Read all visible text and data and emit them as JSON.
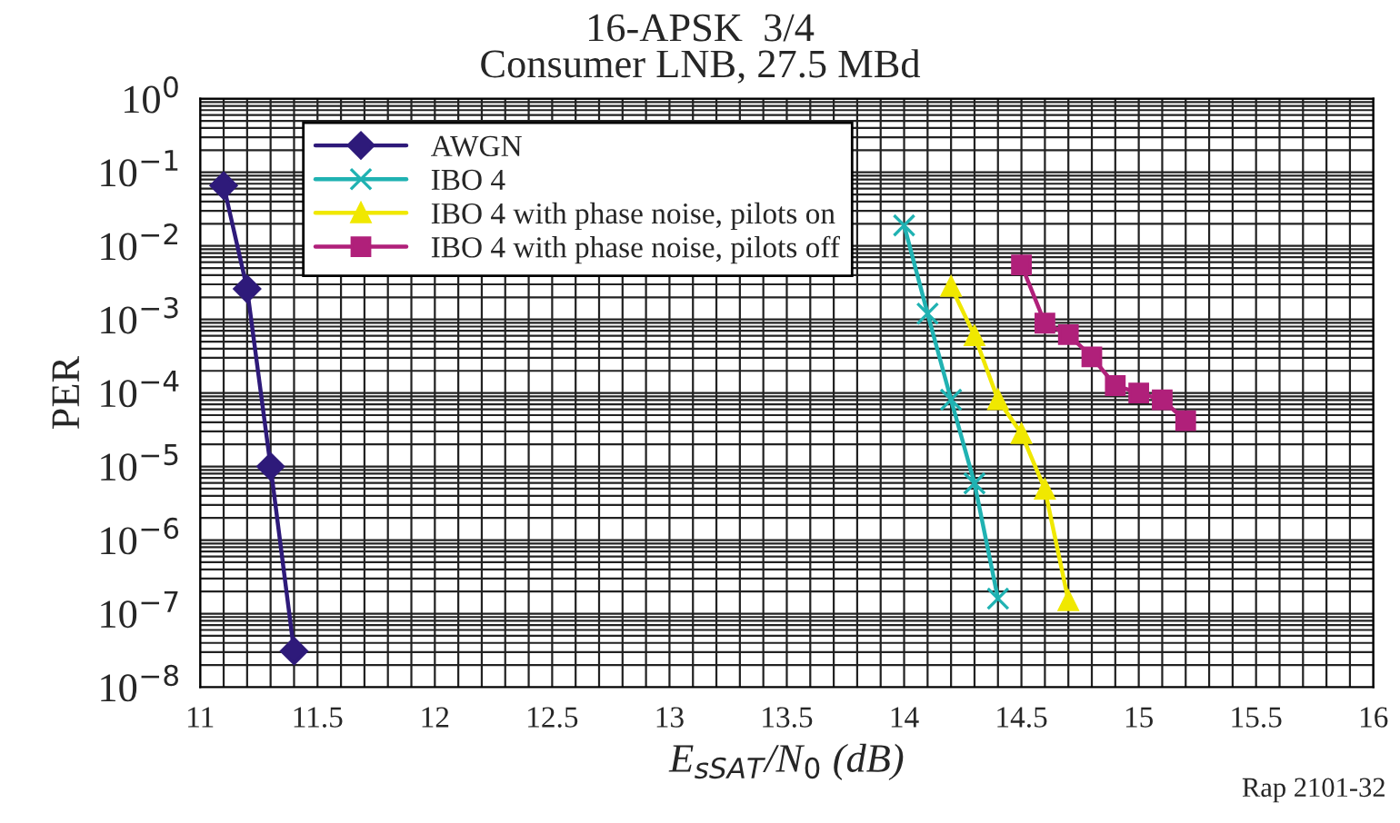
{
  "chart_data": {
    "type": "line",
    "title": "16-APSK  3/4",
    "subtitle": "Consumer LNB, 27.5 MBd",
    "xlabel": "E$_{sSAT}$/N$_{0}$ (dB)",
    "ylabel": "PER",
    "annotations": [
      "Rap 2101-32"
    ],
    "log": "y",
    "grid": true,
    "legend": "top left",
    "xlim": [
      11,
      16
    ],
    "xticks": [
      11,
      11.5,
      12,
      12.5,
      13,
      13.5,
      14,
      14.5,
      15,
      15.5,
      16
    ],
    "ylim": [
      1e-08,
      1
    ],
    "yticks": [
      {
        "value": 1e-08,
        "label": "10$^{−8}$"
      },
      {
        "value": 1e-07,
        "label": "10$^{−7}$"
      },
      {
        "value": 1e-06,
        "label": "10$^{−6}$"
      },
      {
        "value": 1e-05,
        "label": "10$^{−5}$"
      },
      {
        "value": 0.0001,
        "label": "10$^{−4}$"
      },
      {
        "value": 0.001,
        "label": "10$^{−3}$"
      },
      {
        "value": 0.01,
        "label": "10$^{−2}$"
      },
      {
        "value": 0.1,
        "label": "10$^{−1}$"
      },
      {
        "value": 1,
        "label": "10$^{0}$"
      }
    ],
    "series": [
      {
        "name": "AWGN",
        "color": "#2e1a7a",
        "marker": "diamond",
        "x": [
          11.1,
          11.2,
          11.3,
          11.4
        ],
        "values": [
          0.066,
          0.0026,
          1e-05,
          3.1e-08
        ]
      },
      {
        "name": "IBO 4",
        "color": "#20b2b2",
        "marker": "cross",
        "x": [
          14.0,
          14.1,
          14.2,
          14.3,
          14.4
        ],
        "values": [
          0.019,
          0.0012,
          8.1e-05,
          5.9e-06,
          1.6e-07
        ]
      },
      {
        "name": "IBO 4 with phase noise, pilots on",
        "color": "#f0e800",
        "marker": "triangle",
        "x": [
          14.2,
          14.3,
          14.4,
          14.5,
          14.6,
          14.7
        ],
        "values": [
          0.0028,
          0.0006,
          8.1e-05,
          2.8e-05,
          4.9e-06,
          1.5e-07
        ]
      },
      {
        "name": "IBO 4 with phase noise, pilots off",
        "color": "#b0207a",
        "marker": "square",
        "x": [
          14.5,
          14.6,
          14.7,
          14.8,
          14.9,
          15.0,
          15.1,
          15.2
        ],
        "values": [
          0.0055,
          0.00089,
          0.00062,
          0.00031,
          0.000126,
          0.0001,
          8.1e-05,
          4.2e-05
        ]
      }
    ]
  }
}
